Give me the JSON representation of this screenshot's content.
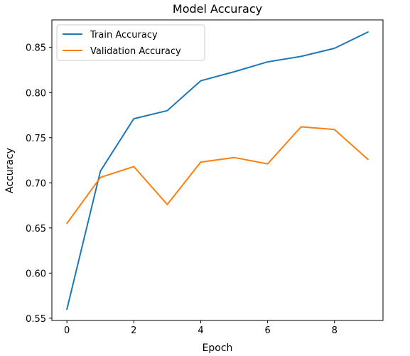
{
  "chart_data": {
    "type": "line",
    "title": "Model Accuracy",
    "xlabel": "Epoch",
    "ylabel": "Accuracy",
    "x": [
      0,
      1,
      2,
      3,
      4,
      5,
      6,
      7,
      8,
      9
    ],
    "xlim": [
      -0.45,
      9.45
    ],
    "ylim": [
      0.5475,
      0.8805
    ],
    "xticks": [
      0,
      2,
      4,
      6,
      8
    ],
    "yticks": [
      0.55,
      0.6,
      0.65,
      0.7,
      0.75,
      0.8,
      0.85
    ],
    "xtick_labels": [
      "0",
      "2",
      "4",
      "6",
      "8"
    ],
    "ytick_labels": [
      "0.55",
      "0.60",
      "0.65",
      "0.70",
      "0.75",
      "0.80",
      "0.85"
    ],
    "grid": false,
    "legend_position": "top-left",
    "series": [
      {
        "name": "Train Accuracy",
        "color": "#1f77b4",
        "values": [
          0.56,
          0.713,
          0.771,
          0.78,
          0.813,
          0.823,
          0.834,
          0.84,
          0.849,
          0.867
        ]
      },
      {
        "name": "Validation Accuracy",
        "color": "#ff7f0e",
        "values": [
          0.655,
          0.706,
          0.718,
          0.676,
          0.723,
          0.728,
          0.721,
          0.762,
          0.759,
          0.726
        ]
      }
    ]
  }
}
